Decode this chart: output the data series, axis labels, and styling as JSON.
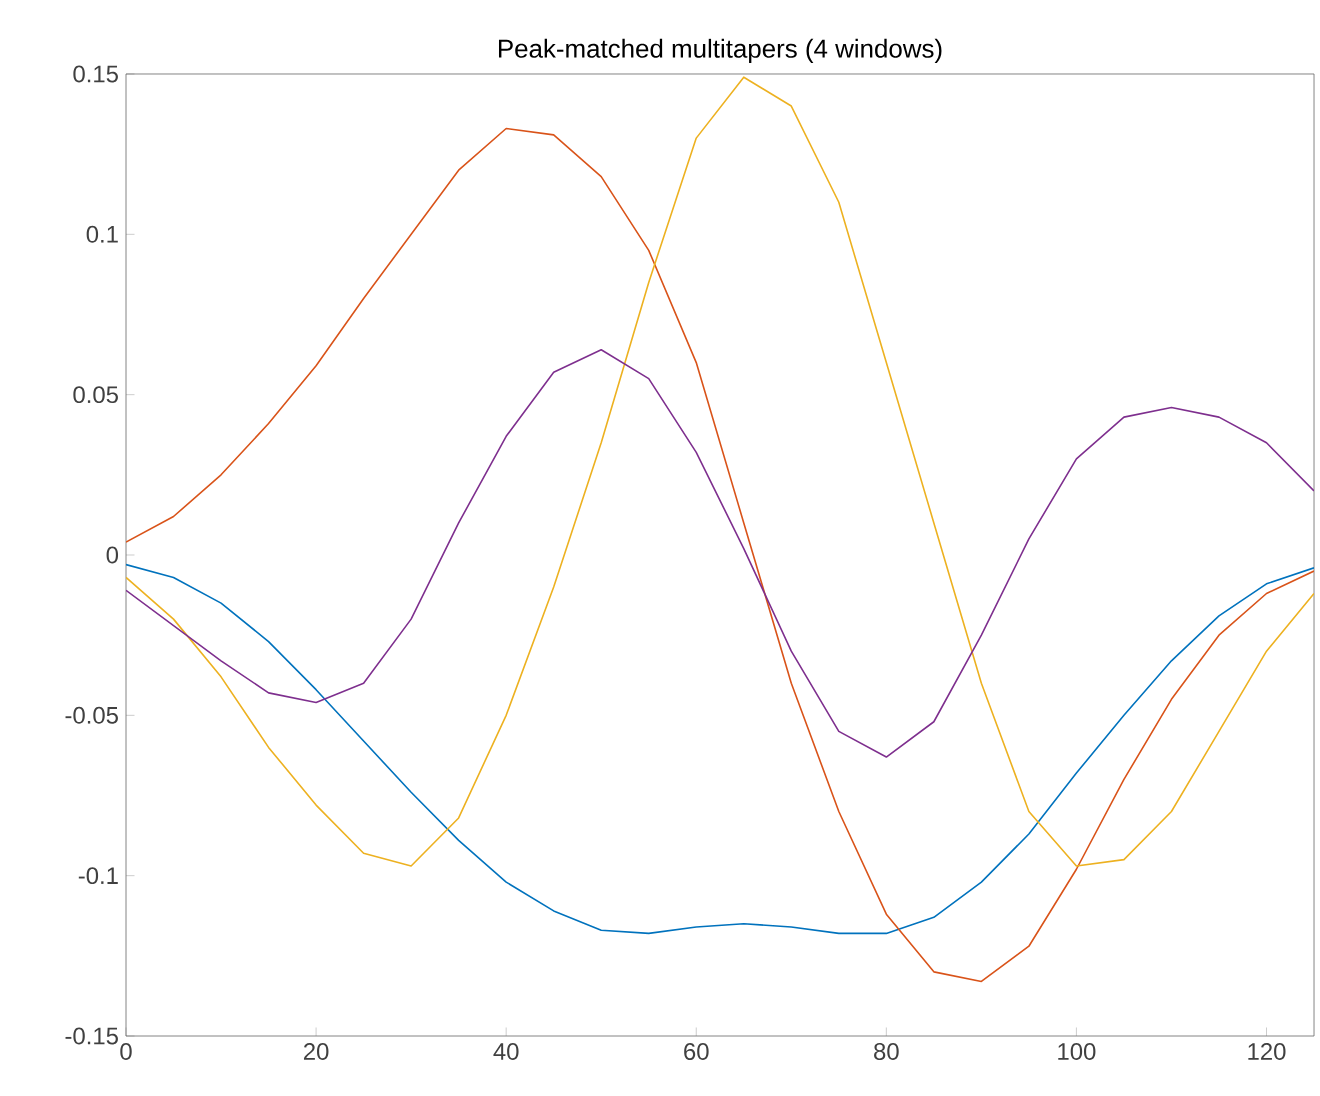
{
  "chart_data": {
    "type": "line",
    "title": "Peak-matched multitapers (4 windows)",
    "xlim": [
      0,
      125
    ],
    "ylim": [
      -0.15,
      0.15
    ],
    "xticks": [
      0,
      20,
      40,
      60,
      80,
      100,
      120
    ],
    "yticks": [
      -0.15,
      -0.1,
      -0.05,
      0,
      0.05,
      0.1,
      0.15
    ],
    "grid": false,
    "marker": "none",
    "line_style": "solid",
    "x": [
      0,
      5,
      10,
      15,
      20,
      25,
      30,
      35,
      40,
      45,
      50,
      55,
      60,
      65,
      70,
      75,
      80,
      85,
      90,
      95,
      100,
      105,
      110,
      115,
      120,
      125
    ],
    "series": [
      {
        "color": "#0072bd",
        "values": [
          -0.003,
          -0.007,
          -0.015,
          -0.027,
          -0.042,
          -0.058,
          -0.074,
          -0.089,
          -0.102,
          -0.111,
          -0.117,
          -0.118,
          -0.116,
          -0.115,
          -0.116,
          -0.118,
          -0.118,
          -0.113,
          -0.102,
          -0.087,
          -0.068,
          -0.05,
          -0.033,
          -0.019,
          -0.009,
          -0.004
        ]
      },
      {
        "color": "#d95319",
        "values": [
          0.004,
          0.012,
          0.025,
          0.041,
          0.059,
          0.08,
          0.1,
          0.12,
          0.133,
          0.131,
          0.118,
          0.095,
          0.06,
          0.01,
          -0.04,
          -0.08,
          -0.112,
          -0.13,
          -0.133,
          -0.122,
          -0.098,
          -0.07,
          -0.045,
          -0.025,
          -0.012,
          -0.005
        ]
      },
      {
        "color": "#edb120",
        "values": [
          -0.007,
          -0.02,
          -0.038,
          -0.06,
          -0.078,
          -0.093,
          -0.097,
          -0.082,
          -0.05,
          -0.01,
          0.035,
          0.085,
          0.13,
          0.149,
          0.14,
          0.11,
          0.06,
          0.01,
          -0.04,
          -0.08,
          -0.097,
          -0.095,
          -0.08,
          -0.055,
          -0.03,
          -0.012
        ]
      },
      {
        "color": "#7e2f8e",
        "values": [
          -0.011,
          -0.022,
          -0.033,
          -0.043,
          -0.046,
          -0.04,
          -0.02,
          0.01,
          0.037,
          0.057,
          0.064,
          0.055,
          0.032,
          0.002,
          -0.03,
          -0.055,
          -0.063,
          -0.052,
          -0.025,
          0.005,
          0.03,
          0.043,
          0.046,
          0.043,
          0.035,
          0.02
        ]
      }
    ]
  }
}
